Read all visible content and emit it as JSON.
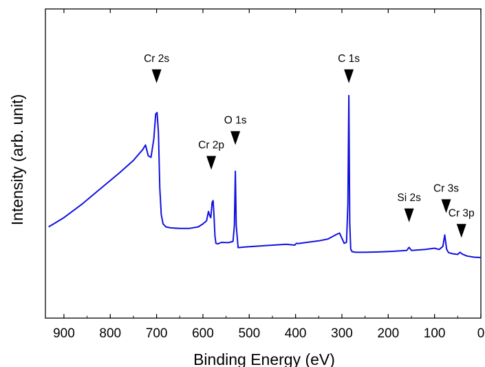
{
  "chart_data": {
    "type": "line",
    "title": "",
    "xlabel": "Binding Energy (eV)",
    "ylabel": "Intensity (arb. unit)",
    "x_reversed": true,
    "xlim": [
      940,
      0
    ],
    "ylim": [
      0,
      100
    ],
    "x_ticks": [
      900,
      800,
      700,
      600,
      500,
      400,
      300,
      200,
      100,
      0
    ],
    "y_ticks_labeled": false,
    "grid": false,
    "legend": "none",
    "line_color": "#1010e0",
    "marker_color": "#000000",
    "series": [
      {
        "x": [
          933,
          900,
          860,
          820,
          780,
          750,
          730,
          724,
          718,
          712,
          706,
          702,
          699,
          696,
          693,
          690,
          686,
          680,
          670,
          650,
          630,
          610,
          600,
          592,
          588,
          585,
          583,
          580,
          578,
          576,
          574,
          572,
          568,
          560,
          545,
          535,
          532,
          530,
          528,
          524,
          510,
          480,
          440,
          420,
          402,
          398,
          394,
          380,
          350,
          330,
          314,
          305,
          295,
          290,
          287,
          285,
          283,
          281,
          278,
          270,
          250,
          220,
          190,
          170,
          160,
          155,
          150,
          140,
          120,
          100,
          90,
          82,
          78,
          74,
          70,
          60,
          50,
          45,
          40,
          30,
          15,
          0
        ],
        "y": [
          29.5,
          32.5,
          37,
          42,
          47,
          51,
          54.5,
          56,
          52.5,
          52,
          58,
          66,
          66.5,
          60,
          42,
          33.5,
          30.5,
          29.5,
          29.2,
          29,
          29,
          29.5,
          30.5,
          31.5,
          34.5,
          33,
          32.5,
          37.5,
          38,
          33,
          26.5,
          24.2,
          24,
          24.5,
          24.4,
          24.8,
          30,
          47.5,
          30,
          22.8,
          23,
          23.3,
          23.7,
          23.9,
          23.6,
          24.2,
          24.1,
          24.4,
          25,
          25.6,
          26.9,
          27.5,
          24.2,
          24.5,
          37,
          72,
          31,
          22.3,
          21.5,
          21.3,
          21.3,
          21.4,
          21.6,
          21.8,
          21.9,
          22.9,
          21.9,
          22,
          22.2,
          22.6,
          22.2,
          23.2,
          26.9,
          22.3,
          21.2,
          20.8,
          20.6,
          21.3,
          20.7,
          20.1,
          19.7,
          19.6
        ]
      }
    ],
    "annotations": [
      {
        "label": "Cr 2s",
        "x": 700,
        "y": 76
      },
      {
        "label": "Cr 2p",
        "x": 582,
        "y": 48
      },
      {
        "label": "O 1s",
        "x": 530,
        "y": 56
      },
      {
        "label": "C 1s",
        "x": 285,
        "y": 76
      },
      {
        "label": "Si 2s",
        "x": 155,
        "y": 31
      },
      {
        "label": "Cr 3s",
        "x": 75,
        "y": 34
      },
      {
        "label": "Cr 3p",
        "x": 42,
        "y": 26
      }
    ]
  }
}
